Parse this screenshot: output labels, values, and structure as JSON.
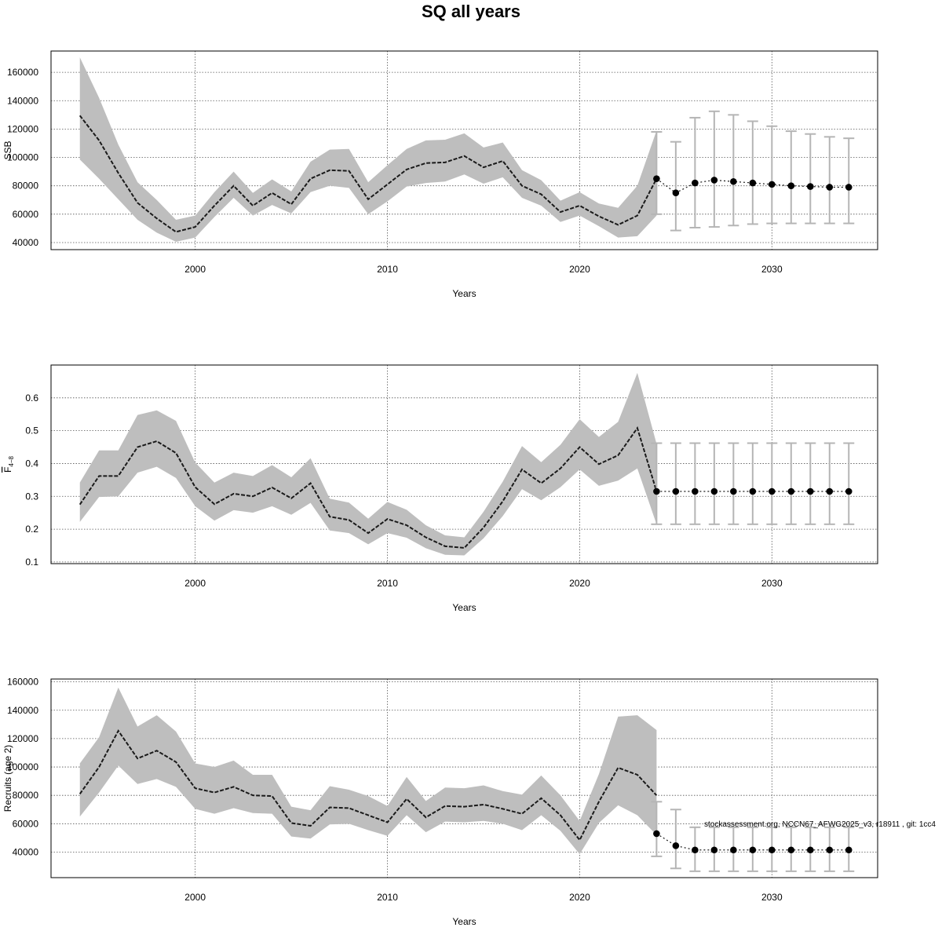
{
  "title": "SQ all years",
  "colors": {
    "band": "#bebebe",
    "line": "#1a1a1a",
    "errorbar": "#b5b5b5",
    "grid": "#555555"
  },
  "chart_data": [
    {
      "type": "line",
      "xlabel": "Years",
      "ylabel": "SSB",
      "xlim": [
        1992.5,
        2035.5
      ],
      "ylim": [
        35000,
        175000
      ],
      "xticks": [
        2000,
        2010,
        2020,
        2030
      ],
      "yticks": [
        40000,
        60000,
        80000,
        100000,
        120000,
        140000,
        160000
      ],
      "grid": true,
      "years": [
        1994,
        1995,
        1996,
        1997,
        1998,
        1999,
        2000,
        2001,
        2002,
        2003,
        2004,
        2005,
        2006,
        2007,
        2008,
        2009,
        2010,
        2011,
        2012,
        2013,
        2014,
        2015,
        2016,
        2017,
        2018,
        2019,
        2020,
        2021,
        2022,
        2023,
        2024
      ],
      "estimate": [
        129500,
        112000,
        89000,
        68000,
        57000,
        47500,
        51000,
        66000,
        80000,
        66000,
        75000,
        67000,
        85000,
        91000,
        90500,
        70500,
        81000,
        91500,
        96000,
        96500,
        101000,
        93000,
        97500,
        80000,
        74000,
        61500,
        66000,
        58500,
        52500,
        59000,
        85000
      ],
      "lower": [
        98500,
        85000,
        70500,
        56000,
        47000,
        40500,
        43500,
        58000,
        71500,
        59000,
        66500,
        60500,
        75500,
        80000,
        78500,
        60000,
        69000,
        79500,
        82000,
        83000,
        88000,
        81500,
        86000,
        71500,
        66000,
        54500,
        59000,
        51500,
        43500,
        44500,
        59000
      ],
      "upper": [
        170500,
        142000,
        109000,
        82500,
        70000,
        56000,
        59000,
        75500,
        90000,
        75000,
        84500,
        76000,
        97000,
        105500,
        106000,
        82500,
        94500,
        106000,
        112000,
        112500,
        117000,
        107000,
        110500,
        91000,
        84000,
        69500,
        75500,
        67500,
        64500,
        80000,
        119000
      ],
      "forecast": {
        "years": [
          2024,
          2025,
          2026,
          2027,
          2028,
          2029,
          2030,
          2031,
          2032,
          2033,
          2034
        ],
        "median": [
          85000,
          75000,
          82000,
          84000,
          83000,
          82000,
          81000,
          80000,
          79500,
          79000,
          79000
        ],
        "low": [
          60000,
          48500,
          50500,
          51000,
          52000,
          53000,
          53500,
          53500,
          53500,
          53500,
          53500
        ],
        "high": [
          118000,
          111000,
          128000,
          132500,
          130000,
          125500,
          122000,
          118500,
          116500,
          114500,
          113500
        ]
      }
    },
    {
      "type": "line",
      "xlabel": "Years",
      "ylabel_main": "F",
      "ylabel_sub": "4−8",
      "xlim": [
        1992.5,
        2035.5
      ],
      "ylim": [
        0.095,
        0.7
      ],
      "xticks": [
        2000,
        2010,
        2020,
        2030
      ],
      "yticks": [
        0.1,
        0.2,
        0.3,
        0.4,
        0.5,
        0.6
      ],
      "ytick_labels": [
        "0.1",
        "0.2",
        "0.3",
        "0.4",
        "0.5",
        "0.6"
      ],
      "grid": true,
      "years": [
        1994,
        1995,
        1996,
        1997,
        1998,
        1999,
        2000,
        2001,
        2002,
        2003,
        2004,
        2005,
        2006,
        2007,
        2008,
        2009,
        2010,
        2011,
        2012,
        2013,
        2014,
        2015,
        2016,
        2017,
        2018,
        2019,
        2020,
        2021,
        2022,
        2023,
        2024
      ],
      "estimate": [
        0.275,
        0.362,
        0.362,
        0.45,
        0.468,
        0.432,
        0.328,
        0.276,
        0.308,
        0.3,
        0.327,
        0.294,
        0.34,
        0.238,
        0.228,
        0.188,
        0.231,
        0.212,
        0.175,
        0.148,
        0.143,
        0.205,
        0.285,
        0.382,
        0.34,
        0.385,
        0.45,
        0.398,
        0.425,
        0.508,
        0.315
      ],
      "lower": [
        0.222,
        0.298,
        0.3,
        0.372,
        0.39,
        0.356,
        0.27,
        0.226,
        0.258,
        0.25,
        0.27,
        0.244,
        0.28,
        0.196,
        0.188,
        0.154,
        0.188,
        0.174,
        0.142,
        0.122,
        0.12,
        0.172,
        0.24,
        0.322,
        0.288,
        0.328,
        0.382,
        0.332,
        0.348,
        0.385,
        0.215
      ],
      "upper": [
        0.342,
        0.44,
        0.44,
        0.548,
        0.562,
        0.53,
        0.403,
        0.342,
        0.372,
        0.362,
        0.395,
        0.358,
        0.416,
        0.293,
        0.281,
        0.232,
        0.283,
        0.259,
        0.212,
        0.181,
        0.175,
        0.253,
        0.345,
        0.453,
        0.404,
        0.457,
        0.535,
        0.481,
        0.527,
        0.676,
        0.46
      ],
      "forecast": {
        "years": [
          2024,
          2025,
          2026,
          2027,
          2028,
          2029,
          2030,
          2031,
          2032,
          2033,
          2034
        ],
        "median": [
          0.315,
          0.315,
          0.315,
          0.315,
          0.315,
          0.315,
          0.315,
          0.315,
          0.315,
          0.315,
          0.315
        ],
        "low": [
          0.215,
          0.215,
          0.215,
          0.215,
          0.215,
          0.215,
          0.215,
          0.215,
          0.215,
          0.215,
          0.215
        ],
        "high": [
          0.462,
          0.462,
          0.462,
          0.462,
          0.462,
          0.462,
          0.462,
          0.462,
          0.462,
          0.462,
          0.462
        ]
      }
    },
    {
      "type": "line",
      "xlabel": "Years",
      "ylabel": "Recruits (age 2)",
      "xlim": [
        1992.5,
        2035.5
      ],
      "ylim": [
        22000,
        162000
      ],
      "xticks": [
        2000,
        2010,
        2020,
        2030
      ],
      "yticks": [
        40000,
        60000,
        80000,
        100000,
        120000,
        140000,
        160000
      ],
      "grid": true,
      "years": [
        1994,
        1995,
        1996,
        1997,
        1998,
        1999,
        2000,
        2001,
        2002,
        2003,
        2004,
        2005,
        2006,
        2007,
        2008,
        2009,
        2010,
        2011,
        2012,
        2013,
        2014,
        2015,
        2016,
        2017,
        2018,
        2019,
        2020,
        2021,
        2022,
        2023,
        2024
      ],
      "estimate": [
        81000,
        100000,
        125500,
        106000,
        111500,
        103500,
        85000,
        82000,
        86000,
        80000,
        79500,
        60500,
        58500,
        71500,
        71000,
        66000,
        61000,
        77500,
        64500,
        72500,
        72000,
        73500,
        70500,
        67000,
        78000,
        66000,
        48500,
        75500,
        99500,
        94500,
        80000
      ],
      "lower": [
        65000,
        82000,
        101000,
        88000,
        91500,
        86000,
        70500,
        67000,
        71000,
        67500,
        67000,
        51000,
        49500,
        59500,
        60000,
        55500,
        51500,
        66000,
        54000,
        61500,
        61000,
        62000,
        60000,
        55500,
        66000,
        55000,
        38500,
        60500,
        73000,
        66000,
        52000
      ],
      "upper": [
        102500,
        121000,
        156000,
        128500,
        136500,
        125000,
        102500,
        100000,
        104500,
        94500,
        94500,
        72000,
        69500,
        86500,
        84000,
        79500,
        72500,
        93000,
        76000,
        85500,
        85000,
        87000,
        83000,
        80500,
        94000,
        80000,
        62000,
        95000,
        135500,
        136500,
        126000
      ],
      "forecast": {
        "years": [
          2024,
          2025,
          2026,
          2027,
          2028,
          2029,
          2030,
          2031,
          2032,
          2033,
          2034
        ],
        "median": [
          53000,
          44500,
          41500,
          41500,
          41500,
          41500,
          41500,
          41500,
          41500,
          41500,
          41500
        ],
        "low": [
          37000,
          28500,
          26500,
          26500,
          26500,
          26500,
          26500,
          26500,
          26500,
          26500,
          26500
        ],
        "high": [
          75500,
          70000,
          57500,
          57500,
          57500,
          57500,
          57500,
          57500,
          57500,
          57500,
          57500
        ]
      },
      "annotation": "stockassessment.org, NCCN67_AFWG2025_v3, r18911 , git: 1cc4"
    }
  ]
}
